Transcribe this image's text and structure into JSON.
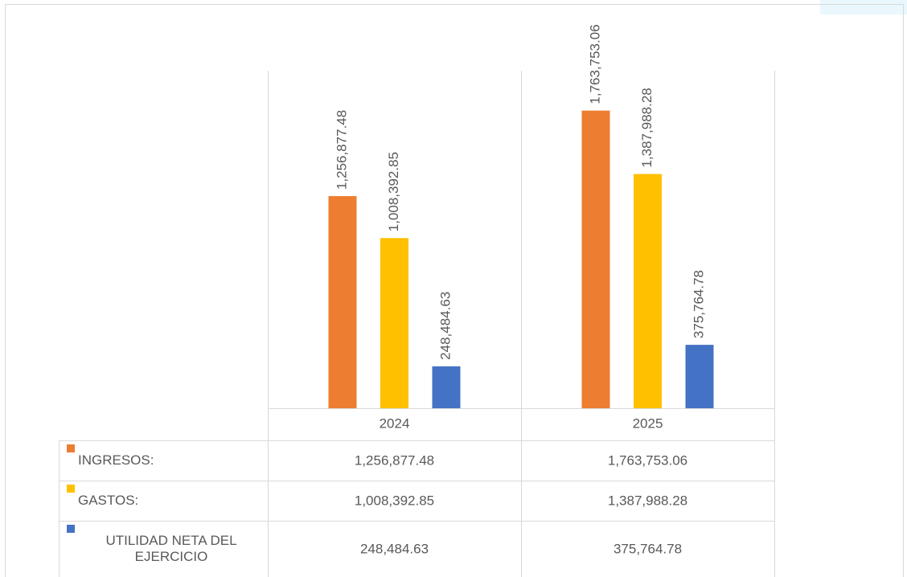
{
  "chart_data": {
    "type": "bar",
    "categories": [
      "2024",
      "2025"
    ],
    "series": [
      {
        "name": "INGRESOS:",
        "color": "#ed7d31",
        "values": [
          1256877.48,
          1763753.06
        ],
        "value_labels": [
          "1,256,877.48",
          "1,763,753.06"
        ]
      },
      {
        "name": "GASTOS:",
        "color": "#ffc000",
        "values": [
          1008392.85,
          1387988.28
        ],
        "value_labels": [
          "1,008,392.85",
          "1,387,988.28"
        ]
      },
      {
        "name": "UTILIDAD NETA DEL EJERCICIO",
        "color": "#4472c4",
        "values": [
          248484.63,
          375764.78
        ],
        "value_labels": [
          "248,484.63",
          "375,764.78"
        ]
      }
    ],
    "ylim": [
      0,
      2000000
    ]
  }
}
